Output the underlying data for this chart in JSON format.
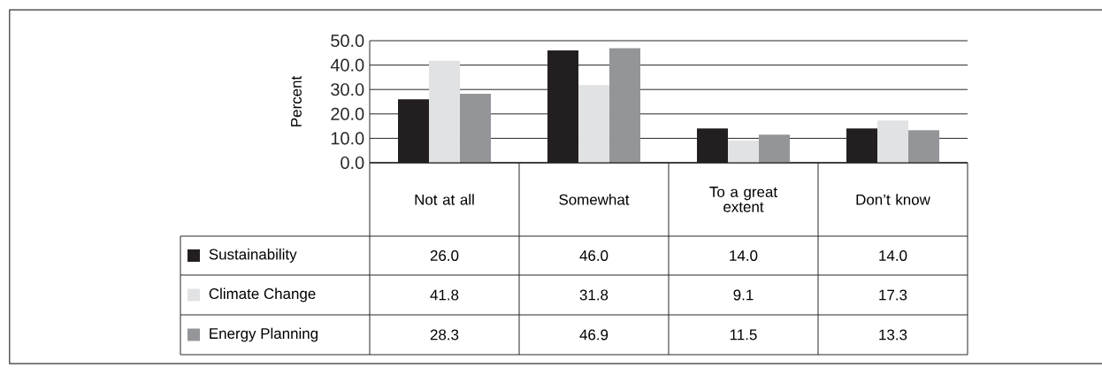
{
  "chart_data": {
    "type": "bar",
    "ylabel": "Percent",
    "categories": [
      "Not at all",
      "Somewhat",
      "To a great extent",
      "Don’t know"
    ],
    "series": [
      {
        "name": "Sustainability",
        "color": "#231f20",
        "values": [
          26.0,
          46.0,
          14.0,
          14.0
        ],
        "value_labels": [
          "26.0",
          "46.0",
          "14.0",
          "14.0"
        ]
      },
      {
        "name": "Climate Change",
        "color": "#e1e2e3",
        "values": [
          41.8,
          31.8,
          9.1,
          17.3
        ],
        "value_labels": [
          "41.8",
          "31.8",
          "9.1",
          "17.3"
        ]
      },
      {
        "name": "Energy Planning",
        "color": "#939598",
        "values": [
          28.3,
          46.9,
          11.5,
          13.3
        ],
        "value_labels": [
          "28.3",
          "46.9",
          "11.5",
          "13.3"
        ]
      }
    ],
    "ylim": [
      0,
      50
    ],
    "yticks": [
      {
        "value": 0,
        "label": "0.0"
      },
      {
        "value": 10,
        "label": "10.0"
      },
      {
        "value": 20,
        "label": "20.0"
      },
      {
        "value": 30,
        "label": "30.0"
      },
      {
        "value": 40,
        "label": "40.0"
      },
      {
        "value": 50,
        "label": "50.0"
      }
    ],
    "grid": "y",
    "legend": "bottom"
  }
}
